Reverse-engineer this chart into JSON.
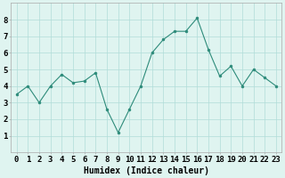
{
  "x": [
    0,
    1,
    2,
    3,
    4,
    5,
    6,
    7,
    8,
    9,
    10,
    11,
    12,
    13,
    14,
    15,
    16,
    17,
    18,
    19,
    20,
    21,
    22,
    23
  ],
  "y": [
    3.5,
    4.0,
    3.0,
    4.0,
    4.7,
    4.2,
    4.3,
    4.8,
    2.6,
    1.2,
    2.6,
    4.0,
    6.0,
    6.8,
    7.3,
    7.3,
    8.1,
    6.2,
    4.6,
    5.2,
    4.0,
    5.0,
    4.5,
    4.0
  ],
  "line_color": "#2d8b7a",
  "marker_color": "#2d8b7a",
  "bg_color": "#dff4f0",
  "grid_color": "#b0ddd8",
  "xlabel": "Humidex (Indice chaleur)",
  "xlim": [
    -0.5,
    23.5
  ],
  "ylim": [
    0,
    9
  ],
  "yticks": [
    1,
    2,
    3,
    4,
    5,
    6,
    7,
    8
  ],
  "xtick_labels": [
    "0",
    "1",
    "2",
    "3",
    "4",
    "5",
    "6",
    "7",
    "8",
    "9",
    "10",
    "11",
    "12",
    "13",
    "14",
    "15",
    "16",
    "17",
    "18",
    "19",
    "20",
    "21",
    "22",
    "23"
  ],
  "label_fontsize": 7,
  "tick_fontsize": 6.5
}
